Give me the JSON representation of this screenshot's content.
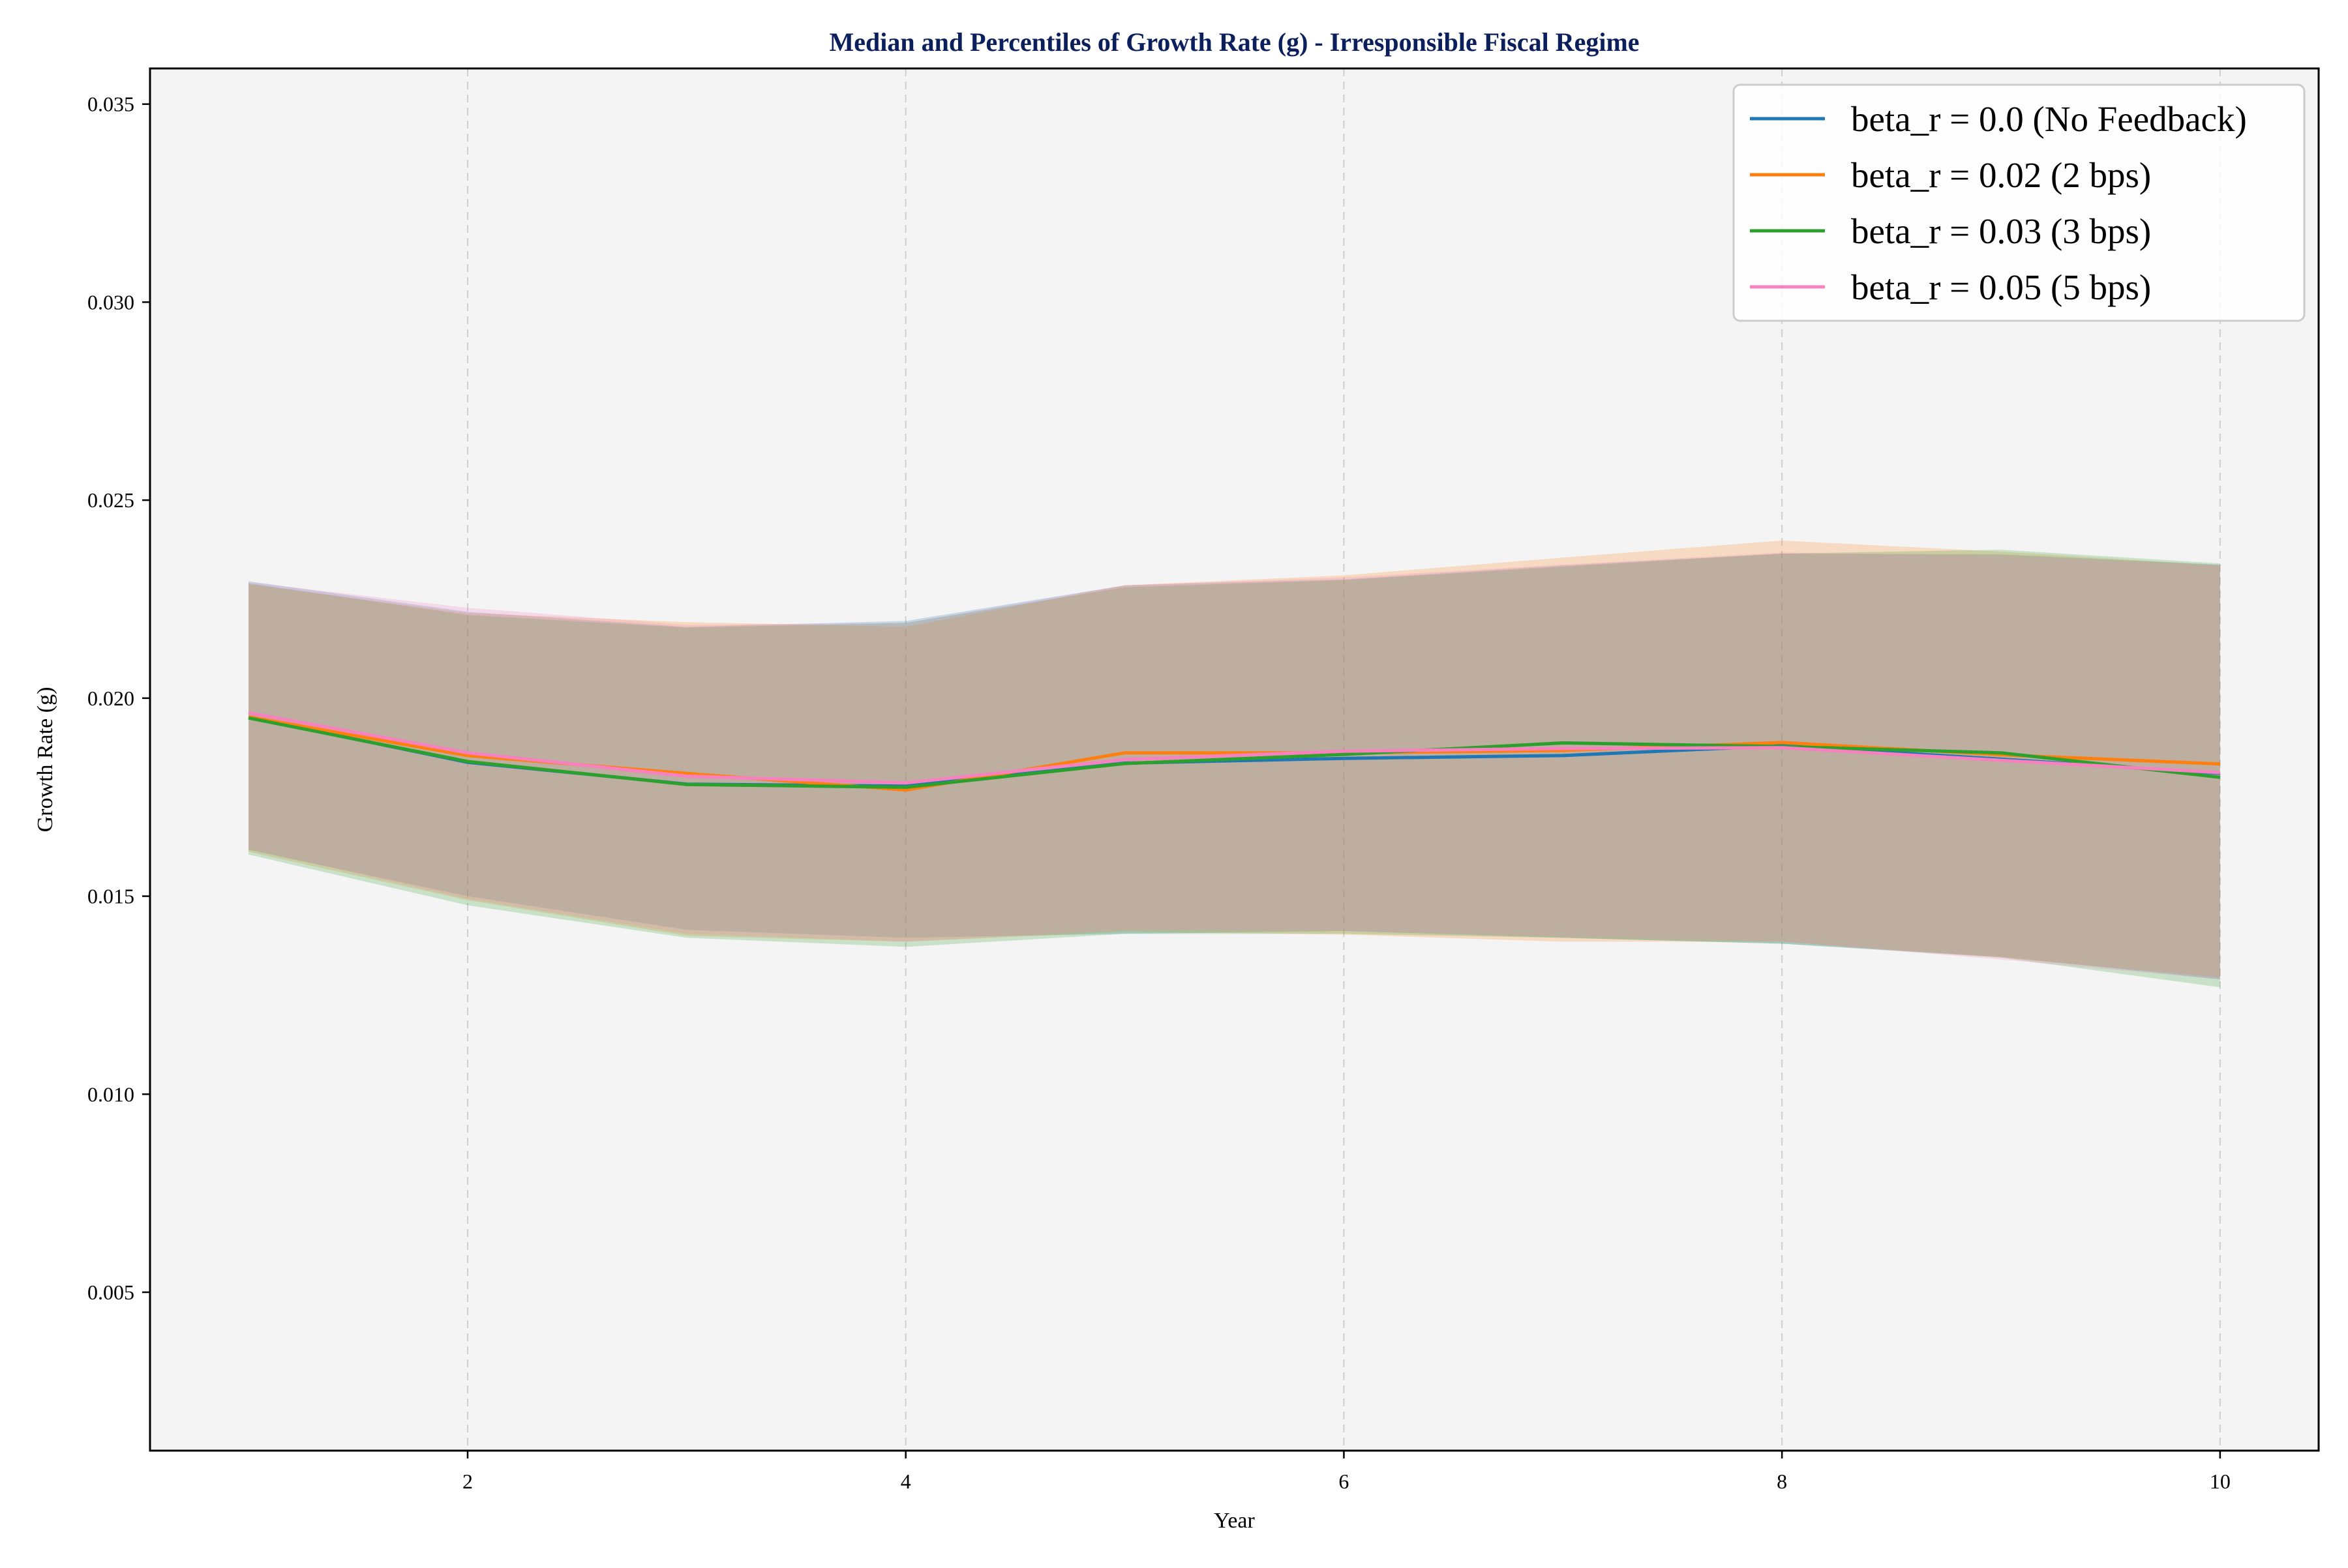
{
  "chart_data": {
    "type": "line",
    "title": "Median and Percentiles of Growth Rate (g) - Irresponsible Fiscal Regime",
    "xlabel": "Year",
    "ylabel": "Growth Rate (g)",
    "xlim": [
      0.55,
      10.45
    ],
    "ylim": [
      0.001,
      0.0359
    ],
    "xticks": [
      2,
      4,
      6,
      8,
      10
    ],
    "yticks": [
      0.005,
      0.01,
      0.015,
      0.02,
      0.025,
      0.03,
      0.035
    ],
    "ytick_labels": [
      "0.005",
      "0.010",
      "0.015",
      "0.020",
      "0.025",
      "0.030",
      "0.035"
    ],
    "grid": "vertical dashed",
    "legend_position": "top-right",
    "x": [
      1,
      2,
      3,
      4,
      5,
      6,
      7,
      8,
      9,
      10
    ],
    "series": [
      {
        "name": "beta_r = 0.0 (No Feedback)",
        "color": "#1f77b4",
        "median": [
          0.01952,
          0.01838,
          0.01783,
          0.01778,
          0.01836,
          0.01848,
          0.01855,
          0.0188,
          0.01846,
          0.0181
        ],
        "lower": [
          0.01617,
          0.015,
          0.01415,
          0.01395,
          0.01405,
          0.01412,
          0.01395,
          0.0138,
          0.01347,
          0.0129
        ],
        "upper": [
          0.02295,
          0.02218,
          0.0218,
          0.02195,
          0.02285,
          0.023,
          0.02335,
          0.02365,
          0.02363,
          0.02337
        ]
      },
      {
        "name": "beta_r = 0.02 (2 bps)",
        "color": "#ff7f0e",
        "median": [
          0.01953,
          0.01855,
          0.0181,
          0.01768,
          0.01862,
          0.01862,
          0.01868,
          0.01888,
          0.01857,
          0.01834
        ],
        "lower": [
          0.01612,
          0.0149,
          0.014,
          0.01385,
          0.0141,
          0.01403,
          0.01385,
          0.01385,
          0.01345,
          0.01295
        ],
        "upper": [
          0.02288,
          0.02215,
          0.02192,
          0.0218,
          0.02285,
          0.0231,
          0.02355,
          0.02398,
          0.0237,
          0.02335
        ]
      },
      {
        "name": "beta_r = 0.03 (3 bps)",
        "color": "#2ca02c",
        "median": [
          0.0195,
          0.0184,
          0.01782,
          0.01775,
          0.01835,
          0.01858,
          0.01887,
          0.01878,
          0.01862,
          0.018
        ],
        "lower": [
          0.01605,
          0.01477,
          0.01395,
          0.01372,
          0.01405,
          0.01405,
          0.01395,
          0.0138,
          0.01345,
          0.0127
        ],
        "upper": [
          0.0229,
          0.0221,
          0.02178,
          0.0219,
          0.0228,
          0.02298,
          0.02332,
          0.02365,
          0.02375,
          0.0234
        ]
      },
      {
        "name": "beta_r = 0.05 (5 bps)",
        "color": "#f781bf",
        "median": [
          0.01963,
          0.01862,
          0.01803,
          0.01786,
          0.01845,
          0.01866,
          0.01873,
          0.01875,
          0.01843,
          0.01812
        ],
        "lower": [
          0.0162,
          0.01493,
          0.01405,
          0.01385,
          0.01415,
          0.01412,
          0.01398,
          0.01385,
          0.0134,
          0.0129
        ],
        "upper": [
          0.02293,
          0.02228,
          0.02185,
          0.0219,
          0.02285,
          0.02305,
          0.02337,
          0.02368,
          0.0236,
          0.02335
        ]
      }
    ]
  }
}
